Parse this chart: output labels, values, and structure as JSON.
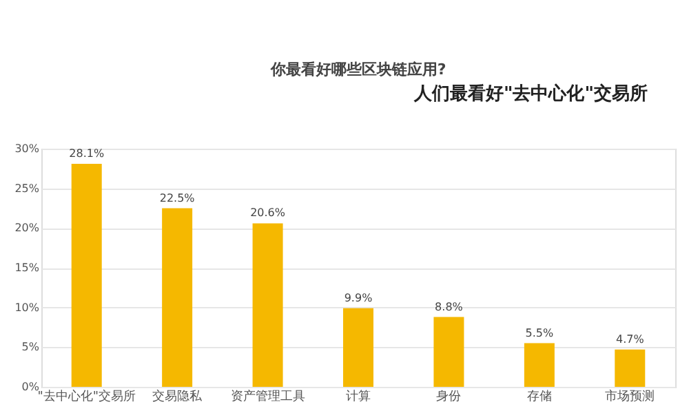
{
  "chart_data": {
    "type": "bar",
    "title": "你最看好哪些区块链应用?",
    "annotations": [
      "人们最看好\"去中心化\"交易所"
    ],
    "categories": [
      "\"去中心化\"交易所",
      "交易隐私",
      "资产管理工具",
      "计算",
      "身份",
      "存储",
      "市场预测"
    ],
    "values": [
      28.1,
      22.5,
      20.6,
      9.9,
      8.8,
      5.5,
      4.7
    ],
    "color": "#f5b800",
    "value_labels": [
      "28.1%",
      "22.5%",
      "20.6%",
      "9.9%",
      "8.8%",
      "5.5%",
      "4.7%"
    ],
    "ylim": [
      0,
      30
    ],
    "yticks": [
      {
        "value": 0,
        "label": "0%"
      },
      {
        "value": 5,
        "label": "5%"
      },
      {
        "value": 10,
        "label": "10%"
      },
      {
        "value": 15,
        "label": "15%"
      },
      {
        "value": 20,
        "label": "20%"
      },
      {
        "value": 25,
        "label": "25%"
      },
      {
        "value": 30,
        "label": "30%"
      }
    ],
    "grid": "y"
  }
}
